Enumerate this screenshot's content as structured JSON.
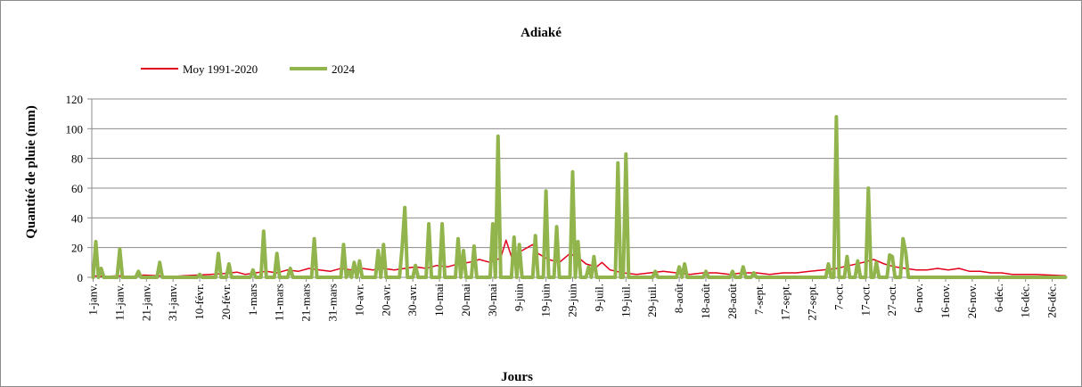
{
  "chart_data": {
    "type": "line",
    "title": "Adiaké",
    "xlabel": "Jours",
    "ylabel": "Quantité de pluie (mm)",
    "ylim": [
      0,
      120
    ],
    "yticks": [
      0,
      20,
      40,
      60,
      80,
      100,
      120
    ],
    "grid": "horizontal",
    "legend_position": "top-left",
    "days_in_year": 366,
    "x_tick_labels": [
      "1-janv.",
      "11-janv.",
      "21-janv.",
      "31-janv.",
      "10-févr.",
      "20-févr.",
      "1-mars",
      "11-mars",
      "21-mars",
      "31-mars",
      "10-avr.",
      "20-avr.",
      "30-avr.",
      "10-mai",
      "20-mai",
      "30-mai",
      "9-juin",
      "19-juin",
      "29-juin",
      "9-juil.",
      "19-juil.",
      "29-juil.",
      "8-août",
      "18-août",
      "28-août",
      "7-sept.",
      "17-sept.",
      "27-sept.",
      "7-oct.",
      "17-oct.",
      "27-oct.",
      "6-nov.",
      "16-nov.",
      "26-nov.",
      "6-déc.",
      "16-déc.",
      "26-déc."
    ],
    "series": [
      {
        "name": "Moy 1991-2020",
        "color": "#e2001a",
        "points": [
          [
            1,
            1
          ],
          [
            5,
            0.5
          ],
          [
            10,
            1
          ],
          [
            15,
            0.5
          ],
          [
            20,
            1.5
          ],
          [
            25,
            1
          ],
          [
            30,
            0.5
          ],
          [
            35,
            1
          ],
          [
            40,
            1.5
          ],
          [
            45,
            2
          ],
          [
            50,
            2.5
          ],
          [
            55,
            3.5
          ],
          [
            58,
            2
          ],
          [
            62,
            3
          ],
          [
            66,
            4
          ],
          [
            70,
            3
          ],
          [
            74,
            5
          ],
          [
            78,
            4
          ],
          [
            82,
            6
          ],
          [
            86,
            5
          ],
          [
            90,
            4
          ],
          [
            94,
            6
          ],
          [
            98,
            5
          ],
          [
            102,
            6
          ],
          [
            106,
            5
          ],
          [
            110,
            6
          ],
          [
            114,
            5
          ],
          [
            118,
            6
          ],
          [
            122,
            7
          ],
          [
            126,
            6
          ],
          [
            130,
            8
          ],
          [
            134,
            7
          ],
          [
            138,
            9
          ],
          [
            142,
            10
          ],
          [
            146,
            12
          ],
          [
            150,
            10
          ],
          [
            154,
            13
          ],
          [
            156,
            25
          ],
          [
            158,
            14
          ],
          [
            162,
            18
          ],
          [
            166,
            22
          ],
          [
            168,
            16
          ],
          [
            172,
            12
          ],
          [
            176,
            10
          ],
          [
            180,
            16
          ],
          [
            184,
            12
          ],
          [
            186,
            9
          ],
          [
            190,
            7
          ],
          [
            192,
            10
          ],
          [
            195,
            5
          ],
          [
            200,
            3
          ],
          [
            205,
            2
          ],
          [
            210,
            3
          ],
          [
            215,
            4
          ],
          [
            220,
            3
          ],
          [
            225,
            2
          ],
          [
            230,
            3
          ],
          [
            235,
            3
          ],
          [
            240,
            2
          ],
          [
            245,
            3
          ],
          [
            250,
            3
          ],
          [
            255,
            2
          ],
          [
            260,
            3
          ],
          [
            265,
            3
          ],
          [
            270,
            4
          ],
          [
            275,
            5
          ],
          [
            280,
            6
          ],
          [
            285,
            8
          ],
          [
            290,
            10
          ],
          [
            294,
            12
          ],
          [
            298,
            9
          ],
          [
            302,
            7
          ],
          [
            306,
            6
          ],
          [
            310,
            5
          ],
          [
            314,
            5
          ],
          [
            318,
            6
          ],
          [
            322,
            5
          ],
          [
            326,
            6
          ],
          [
            330,
            4
          ],
          [
            334,
            4
          ],
          [
            338,
            3
          ],
          [
            342,
            3
          ],
          [
            346,
            2
          ],
          [
            350,
            2
          ],
          [
            355,
            2
          ],
          [
            360,
            1.5
          ],
          [
            366,
            1
          ]
        ]
      },
      {
        "name": "2024",
        "color": "#92b44d",
        "points": [
          [
            1,
            0
          ],
          [
            2,
            24
          ],
          [
            3,
            0
          ],
          [
            4,
            6
          ],
          [
            5,
            0
          ],
          [
            10,
            0
          ],
          [
            11,
            19
          ],
          [
            12,
            0
          ],
          [
            17,
            0
          ],
          [
            18,
            4
          ],
          [
            19,
            0
          ],
          [
            25,
            0
          ],
          [
            26,
            10
          ],
          [
            27,
            0
          ],
          [
            40,
            0
          ],
          [
            41,
            2
          ],
          [
            42,
            0
          ],
          [
            47,
            0
          ],
          [
            48,
            16
          ],
          [
            49,
            0
          ],
          [
            51,
            0
          ],
          [
            52,
            9
          ],
          [
            53,
            0
          ],
          [
            60,
            0
          ],
          [
            61,
            5
          ],
          [
            62,
            0
          ],
          [
            64,
            0
          ],
          [
            65,
            31
          ],
          [
            66,
            0
          ],
          [
            69,
            0
          ],
          [
            70,
            16
          ],
          [
            71,
            0
          ],
          [
            74,
            0
          ],
          [
            75,
            6
          ],
          [
            76,
            0
          ],
          [
            83,
            0
          ],
          [
            84,
            26
          ],
          [
            85,
            0
          ],
          [
            94,
            0
          ],
          [
            95,
            22
          ],
          [
            96,
            0
          ],
          [
            97,
            4
          ],
          [
            98,
            0
          ],
          [
            99,
            10
          ],
          [
            100,
            0
          ],
          [
            101,
            11
          ],
          [
            102,
            0
          ],
          [
            107,
            0
          ],
          [
            108,
            18
          ],
          [
            109,
            0
          ],
          [
            110,
            22
          ],
          [
            111,
            0
          ],
          [
            116,
            0
          ],
          [
            117,
            20
          ],
          [
            118,
            47
          ],
          [
            119,
            0
          ],
          [
            121,
            0
          ],
          [
            122,
            8
          ],
          [
            123,
            0
          ],
          [
            126,
            0
          ],
          [
            127,
            36
          ],
          [
            128,
            0
          ],
          [
            131,
            0
          ],
          [
            132,
            36
          ],
          [
            133,
            0
          ],
          [
            137,
            0
          ],
          [
            138,
            26
          ],
          [
            139,
            0
          ],
          [
            140,
            18
          ],
          [
            141,
            0
          ],
          [
            143,
            0
          ],
          [
            144,
            21
          ],
          [
            145,
            0
          ],
          [
            150,
            0
          ],
          [
            151,
            36
          ],
          [
            152,
            0
          ],
          [
            153,
            95
          ],
          [
            154,
            0
          ],
          [
            158,
            0
          ],
          [
            159,
            27
          ],
          [
            160,
            0
          ],
          [
            161,
            22
          ],
          [
            162,
            0
          ],
          [
            166,
            0
          ],
          [
            167,
            28
          ],
          [
            168,
            0
          ],
          [
            170,
            0
          ],
          [
            171,
            58
          ],
          [
            172,
            0
          ],
          [
            174,
            0
          ],
          [
            175,
            34
          ],
          [
            176,
            0
          ],
          [
            180,
            0
          ],
          [
            181,
            71
          ],
          [
            182,
            0
          ],
          [
            183,
            24
          ],
          [
            184,
            0
          ],
          [
            186,
            0
          ],
          [
            187,
            7
          ],
          [
            188,
            0
          ],
          [
            189,
            14
          ],
          [
            190,
            0
          ],
          [
            197,
            0
          ],
          [
            198,
            77
          ],
          [
            199,
            0
          ],
          [
            200,
            0
          ],
          [
            201,
            83
          ],
          [
            202,
            0
          ],
          [
            211,
            0
          ],
          [
            212,
            4
          ],
          [
            213,
            0
          ],
          [
            220,
            0
          ],
          [
            221,
            7
          ],
          [
            222,
            0
          ],
          [
            223,
            9
          ],
          [
            224,
            0
          ],
          [
            230,
            0
          ],
          [
            231,
            4
          ],
          [
            232,
            0
          ],
          [
            240,
            0
          ],
          [
            241,
            4
          ],
          [
            242,
            0
          ],
          [
            244,
            0
          ],
          [
            245,
            7
          ],
          [
            246,
            0
          ],
          [
            248,
            0
          ],
          [
            249,
            3
          ],
          [
            250,
            0
          ],
          [
            276,
            0
          ],
          [
            277,
            9
          ],
          [
            278,
            0
          ],
          [
            279,
            0
          ],
          [
            280,
            108
          ],
          [
            281,
            0
          ],
          [
            283,
            0
          ],
          [
            284,
            14
          ],
          [
            285,
            0
          ],
          [
            287,
            0
          ],
          [
            288,
            11
          ],
          [
            289,
            0
          ],
          [
            291,
            0
          ],
          [
            292,
            60
          ],
          [
            293,
            0
          ],
          [
            294,
            0
          ],
          [
            295,
            10
          ],
          [
            296,
            0
          ],
          [
            299,
            0
          ],
          [
            300,
            15
          ],
          [
            301,
            14
          ],
          [
            302,
            0
          ],
          [
            304,
            0
          ],
          [
            305,
            26
          ],
          [
            306,
            17
          ],
          [
            307,
            0
          ],
          [
            320,
            0
          ],
          [
            366,
            0
          ]
        ]
      }
    ]
  }
}
